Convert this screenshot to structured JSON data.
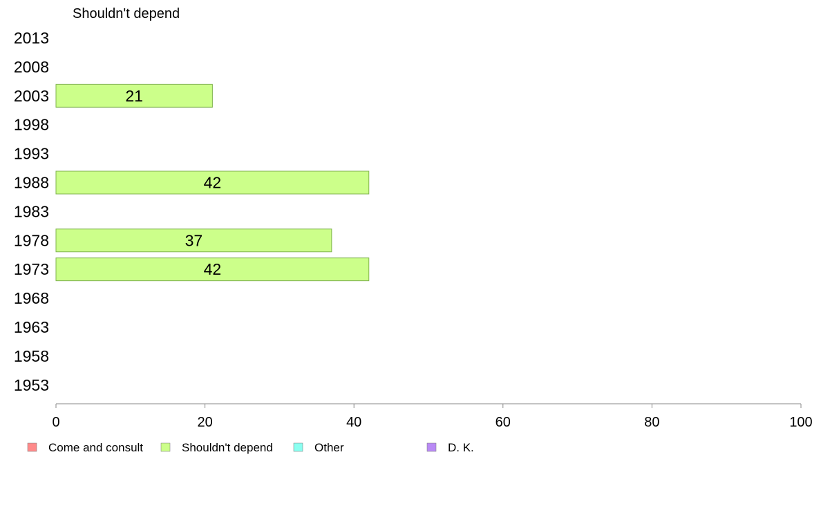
{
  "chart_data": {
    "type": "bar",
    "orientation": "horizontal",
    "title": "Shouldn't depend",
    "categories": [
      "2013",
      "2008",
      "2003",
      "1998",
      "1993",
      "1988",
      "1983",
      "1978",
      "1973",
      "1968",
      "1963",
      "1958",
      "1953"
    ],
    "series": [
      {
        "name": "Shouldn't depend",
        "values": [
          null,
          null,
          21,
          null,
          null,
          42,
          null,
          37,
          42,
          null,
          null,
          null,
          null
        ],
        "labels": [
          "",
          "",
          "21",
          "",
          "",
          "42",
          "",
          "37",
          "42",
          "",
          "",
          "",
          ""
        ]
      }
    ],
    "xlim": [
      0,
      100
    ],
    "xticks": [
      "0",
      "20",
      "40",
      "60",
      "80",
      "100"
    ],
    "grid": false,
    "legend_position": "bottom",
    "legend": [
      {
        "label": "Come and consult",
        "color": "#ff8a8a"
      },
      {
        "label": "Shouldn't depend",
        "color": "#ccff8a"
      },
      {
        "label": "Other",
        "color": "#8afff0"
      },
      {
        "label": "D. K.",
        "color": "#b98af5"
      }
    ],
    "bar_color": "#ccff8a",
    "bar_edge": "#7fb34d",
    "axis_color": "#888888"
  }
}
